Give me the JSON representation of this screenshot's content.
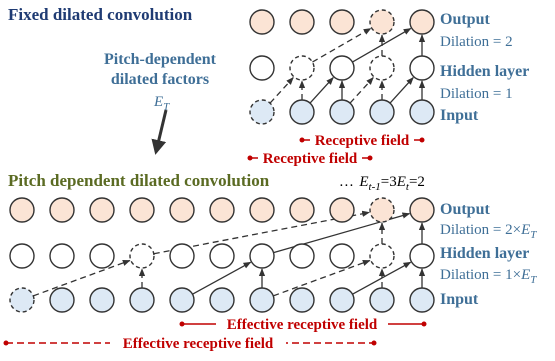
{
  "top": {
    "title": "Fixed dilated convolution",
    "factors_line1": "Pitch-dependent",
    "factors_line2": "dilated factors",
    "et_main": "E",
    "et_sub": "T",
    "output_label": "Output",
    "dilation_output": "Dilation = 2",
    "hidden_label": "Hidden layer",
    "dilation_hidden": "Dilation = 1",
    "input_label": "Input",
    "rf_inner": "Receptive field",
    "rf_outer": "Receptive field"
  },
  "bottom": {
    "title": "Pitch dependent dilated convolution",
    "ellipsis": "…",
    "e_prev_main": "E",
    "e_prev_sub": "t-1",
    "e_prev_val": "=3",
    "e_cur_main": "E",
    "e_cur_sub": "t",
    "e_cur_val": "=2",
    "output_label": "Output",
    "dilation_output_prefix": "Dilation = 2×",
    "hidden_label": "Hidden layer",
    "dilation_hidden_prefix": "Dilation = 1×",
    "et_main": "E",
    "et_sub": "T",
    "input_label": "Input",
    "erf_inner": "Effective receptive field",
    "erf_outer": "Effective receptive field"
  },
  "colors": {
    "output_fill": "#fbe4d5",
    "input_fill": "#dde9f5",
    "hidden_fill": "#ffffff",
    "stroke": "#333333",
    "title_top": "#1f3b73",
    "title_bottom": "#5b6b23",
    "label_blue": "#3f6f97",
    "red": "#c00000"
  }
}
